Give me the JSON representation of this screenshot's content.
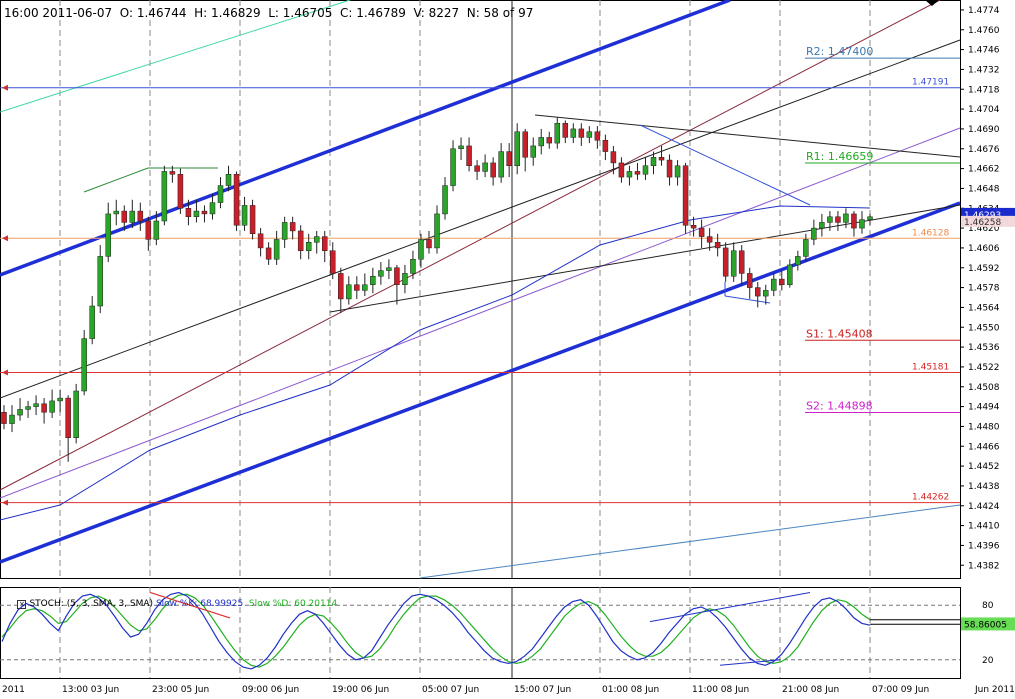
{
  "header": {
    "text": "16:00 2011-06-07  O: 1.46744  H: 1.46829  L: 1.46705  C: 1.46789  V: 8227  N: 58 of 97"
  },
  "colors": {
    "up_candle": "#2aa52a",
    "down_candle": "#c8202a",
    "channel": "#1f2fd6",
    "grid": "#555555"
  },
  "chart_data": [
    {
      "type": "candlestick",
      "y_axis_ticks": [
        1.4774,
        1.476,
        1.4746,
        1.4732,
        1.4718,
        1.4704,
        1.469,
        1.4676,
        1.4662,
        1.4648,
        1.4634,
        1.462,
        1.4606,
        1.4592,
        1.4578,
        1.4564,
        1.455,
        1.4536,
        1.4522,
        1.4508,
        1.4494,
        1.448,
        1.4466,
        1.4452,
        1.4438,
        1.4424,
        1.441,
        1.4396,
        1.4382
      ],
      "ylim": [
        1.4373,
        1.4781
      ],
      "x_tick_labels": [
        "2011",
        "13:00 03 Jun",
        "23:00 05 Jun",
        "09:00 06 Jun",
        "19:00 06 Jun",
        "05:00 07 Jun",
        "15:00 07 Jun",
        "01:00 08 Jun",
        "11:00 08 Jun",
        "21:00 08 Jun",
        "07:00 09 Jun",
        "Jun 2011"
      ],
      "price_labels": [
        {
          "text": "R2: 1.47400",
          "value": 1.474,
          "color": "#3a78b0"
        },
        {
          "text": "1.47191",
          "value": 1.47191,
          "color": "#3a52d6"
        },
        {
          "text": "R1: 1.46659",
          "value": 1.46659,
          "color": "#22aa22"
        },
        {
          "text": "1.46128",
          "value": 1.46128,
          "color": "#f08a4a"
        },
        {
          "text": "S1: 1.45408",
          "value": 1.45408,
          "color": "#cc2222"
        },
        {
          "text": "1.45181",
          "value": 1.45181,
          "color": "#dd2222"
        },
        {
          "text": "S2: 1.44898",
          "value": 1.44898,
          "color": "#cc22cc"
        },
        {
          "text": "1.44262",
          "value": 1.44262,
          "color": "#dd2222"
        }
      ],
      "current_price_label": "1.46293",
      "second_price_label": "1.46258",
      "candles": [
        [
          1.449,
          1.4482,
          1.4495,
          1.4478
        ],
        [
          1.4482,
          1.4488,
          1.4495,
          1.4476
        ],
        [
          1.4488,
          1.4492,
          1.45,
          1.4484
        ],
        [
          1.4492,
          1.4494,
          1.4498,
          1.4486
        ],
        [
          1.4494,
          1.4496,
          1.4502,
          1.4488
        ],
        [
          1.4496,
          1.449,
          1.45,
          1.4482
        ],
        [
          1.449,
          1.4498,
          1.4506,
          1.4486
        ],
        [
          1.4498,
          1.45,
          1.4506,
          1.449
        ],
        [
          1.45,
          1.4472,
          1.4502,
          1.4455
        ],
        [
          1.4472,
          1.4505,
          1.451,
          1.4468
        ],
        [
          1.4505,
          1.4542,
          1.4548,
          1.4502
        ],
        [
          1.4542,
          1.4565,
          1.4572,
          1.4538
        ],
        [
          1.4565,
          1.46,
          1.4608,
          1.456
        ],
        [
          1.46,
          1.463,
          1.4638,
          1.4596
        ],
        [
          1.463,
          1.4632,
          1.464,
          1.4622
        ],
        [
          1.4632,
          1.4624,
          1.4636,
          1.4618
        ],
        [
          1.4624,
          1.4632,
          1.464,
          1.462
        ],
        [
          1.4632,
          1.4625,
          1.4638,
          1.4618
        ],
        [
          1.4625,
          1.4612,
          1.4628,
          1.4604
        ],
        [
          1.4612,
          1.4625,
          1.4632,
          1.4608
        ],
        [
          1.4625,
          1.466,
          1.4664,
          1.4622
        ],
        [
          1.466,
          1.4658,
          1.4664,
          1.4652
        ],
        [
          1.4658,
          1.4634,
          1.4662,
          1.463
        ],
        [
          1.4634,
          1.4628,
          1.464,
          1.4622
        ],
        [
          1.4628,
          1.4632,
          1.464,
          1.4624
        ],
        [
          1.4632,
          1.463,
          1.4636,
          1.4624
        ],
        [
          1.463,
          1.4638,
          1.4644,
          1.4626
        ],
        [
          1.4638,
          1.465,
          1.4656,
          1.4634
        ],
        [
          1.465,
          1.4658,
          1.4664,
          1.4646
        ],
        [
          1.4658,
          1.4622,
          1.466,
          1.4618
        ],
        [
          1.4622,
          1.4636,
          1.4642,
          1.4618
        ],
        [
          1.4636,
          1.4616,
          1.464,
          1.4612
        ],
        [
          1.4616,
          1.4606,
          1.462,
          1.46
        ],
        [
          1.4606,
          1.4598,
          1.461,
          1.4594
        ],
        [
          1.4598,
          1.4612,
          1.4618,
          1.4594
        ],
        [
          1.4612,
          1.4624,
          1.4628,
          1.4606
        ],
        [
          1.4624,
          1.4618,
          1.4628,
          1.4612
        ],
        [
          1.4618,
          1.4604,
          1.4622,
          1.4598
        ],
        [
          1.4604,
          1.461,
          1.4616,
          1.4598
        ],
        [
          1.461,
          1.4614,
          1.4618,
          1.4602
        ],
        [
          1.4614,
          1.4604,
          1.4618,
          1.4596
        ],
        [
          1.4604,
          1.4588,
          1.461,
          1.4584
        ],
        [
          1.4588,
          1.457,
          1.4592,
          1.456
        ],
        [
          1.457,
          1.458,
          1.4586,
          1.4566
        ],
        [
          1.458,
          1.4576,
          1.4586,
          1.457
        ],
        [
          1.4576,
          1.458,
          1.4588,
          1.4572
        ],
        [
          1.458,
          1.4586,
          1.4592,
          1.4574
        ],
        [
          1.4586,
          1.459,
          1.4596,
          1.458
        ],
        [
          1.459,
          1.4592,
          1.4598,
          1.4584
        ],
        [
          1.4592,
          1.458,
          1.4594,
          1.4566
        ],
        [
          1.458,
          1.4588,
          1.4594,
          1.4574
        ],
        [
          1.4588,
          1.4598,
          1.4604,
          1.4584
        ],
        [
          1.4598,
          1.4612,
          1.4616,
          1.4592
        ],
        [
          1.4612,
          1.4606,
          1.4618,
          1.4602
        ],
        [
          1.4606,
          1.463,
          1.4636,
          1.4602
        ],
        [
          1.463,
          1.465,
          1.4656,
          1.4626
        ],
        [
          1.465,
          1.4676,
          1.4682,
          1.4646
        ],
        [
          1.4676,
          1.4678,
          1.4684,
          1.4668
        ],
        [
          1.4678,
          1.4664,
          1.4684,
          1.466
        ],
        [
          1.4664,
          1.466,
          1.4668,
          1.4654
        ],
        [
          1.466,
          1.4666,
          1.4672,
          1.4656
        ],
        [
          1.4666,
          1.4656,
          1.467,
          1.465
        ],
        [
          1.4656,
          1.4674,
          1.468,
          1.4652
        ],
        [
          1.4674,
          1.4664,
          1.468,
          1.4656
        ],
        [
          1.4664,
          1.4688,
          1.4694,
          1.4658
        ],
        [
          1.4688,
          1.467,
          1.469,
          1.466
        ],
        [
          1.467,
          1.4678,
          1.4684,
          1.4664
        ],
        [
          1.4678,
          1.4684,
          1.469,
          1.4672
        ],
        [
          1.4684,
          1.468,
          1.4688,
          1.4676
        ],
        [
          1.468,
          1.4694,
          1.4698,
          1.4676
        ],
        [
          1.4694,
          1.4684,
          1.4696,
          1.468
        ],
        [
          1.4684,
          1.469,
          1.4694,
          1.468
        ],
        [
          1.469,
          1.4684,
          1.4694,
          1.4678
        ],
        [
          1.4684,
          1.4688,
          1.4692,
          1.468
        ],
        [
          1.4688,
          1.4682,
          1.4692,
          1.4676
        ],
        [
          1.4682,
          1.4674,
          1.4686,
          1.4668
        ],
        [
          1.4674,
          1.4666,
          1.4678,
          1.4658
        ],
        [
          1.4666,
          1.4656,
          1.467,
          1.4652
        ],
        [
          1.4656,
          1.466,
          1.4664,
          1.465
        ],
        [
          1.466,
          1.4658,
          1.4666,
          1.4654
        ],
        [
          1.4658,
          1.4664,
          1.467,
          1.4654
        ],
        [
          1.4664,
          1.467,
          1.4674,
          1.4658
        ],
        [
          1.467,
          1.4668,
          1.4678,
          1.4664
        ],
        [
          1.4668,
          1.4656,
          1.4672,
          1.465
        ],
        [
          1.4656,
          1.4664,
          1.4668,
          1.465
        ],
        [
          1.4664,
          1.4622,
          1.4666,
          1.4616
        ],
        [
          1.4622,
          1.462,
          1.4628,
          1.4614
        ],
        [
          1.462,
          1.4614,
          1.4626,
          1.4606
        ],
        [
          1.4614,
          1.461,
          1.462,
          1.4604
        ],
        [
          1.461,
          1.4606,
          1.4616,
          1.46
        ],
        [
          1.4606,
          1.4586,
          1.461,
          1.4582
        ],
        [
          1.4586,
          1.4604,
          1.461,
          1.4582
        ],
        [
          1.4604,
          1.4588,
          1.4608,
          1.458
        ],
        [
          1.4588,
          1.4578,
          1.4592,
          1.457
        ],
        [
          1.4578,
          1.4572,
          1.4582,
          1.4564
        ],
        [
          1.4572,
          1.4576,
          1.458,
          1.4566
        ],
        [
          1.4576,
          1.4584,
          1.4588,
          1.4572
        ],
        [
          1.4584,
          1.458,
          1.459,
          1.4576
        ],
        [
          1.458,
          1.4594,
          1.4598,
          1.4578
        ],
        [
          1.4594,
          1.46,
          1.4604,
          1.459
        ],
        [
          1.46,
          1.4612,
          1.4616,
          1.4596
        ],
        [
          1.4612,
          1.462,
          1.4626,
          1.4608
        ],
        [
          1.462,
          1.4624,
          1.463,
          1.4614
        ],
        [
          1.4624,
          1.4628,
          1.4632,
          1.4618
        ],
        [
          1.4628,
          1.4624,
          1.4632,
          1.4618
        ],
        [
          1.4624,
          1.463,
          1.4634,
          1.462
        ],
        [
          1.463,
          1.462,
          1.4632,
          1.4614
        ],
        [
          1.462,
          1.4626,
          1.4632,
          1.4616
        ],
        [
          1.4626,
          1.4628,
          1.463,
          1.4622
        ]
      ]
    },
    {
      "type": "line",
      "name": "STOCH",
      "header_prefix": "STOCH: (5, 3, SMA, 3, SMA)",
      "k_label": "Slow %K: 68.99925",
      "d_label": "Slow %D: 60.20114",
      "k_color": "#2030c8",
      "d_color": "#20b020",
      "y_ticks": [
        80,
        20
      ],
      "ylim": [
        0,
        100
      ],
      "current_value_label": "58.86005",
      "k": [
        40,
        60,
        75,
        82,
        78,
        70,
        60,
        52,
        68,
        82,
        90,
        92,
        88,
        80,
        68,
        55,
        45,
        48,
        60,
        75,
        86,
        92,
        94,
        90,
        82,
        70,
        55,
        40,
        28,
        18,
        12,
        10,
        14,
        22,
        34,
        48,
        60,
        70,
        74,
        70,
        60,
        48,
        36,
        26,
        20,
        22,
        30,
        44,
        58,
        70,
        82,
        90,
        92,
        90,
        86,
        80,
        72,
        62,
        50,
        40,
        30,
        22,
        18,
        16,
        18,
        24,
        32,
        44,
        56,
        68,
        78,
        84,
        86,
        80,
        68,
        54,
        40,
        30,
        24,
        20,
        22,
        28,
        38,
        50,
        60,
        70,
        76,
        78,
        74,
        66,
        56,
        44,
        32,
        22,
        16,
        14,
        18,
        26,
        38,
        52,
        66,
        78,
        86,
        88,
        84,
        76,
        66,
        60,
        58
      ],
      "d": [
        45,
        55,
        66,
        74,
        76,
        74,
        68,
        60,
        62,
        72,
        82,
        88,
        90,
        86,
        78,
        68,
        58,
        52,
        54,
        64,
        76,
        86,
        91,
        92,
        88,
        80,
        68,
        55,
        42,
        30,
        20,
        14,
        12,
        16,
        24,
        34,
        46,
        58,
        66,
        70,
        68,
        60,
        50,
        38,
        28,
        22,
        24,
        32,
        44,
        58,
        70,
        80,
        88,
        90,
        90,
        86,
        80,
        72,
        62,
        52,
        42,
        32,
        24,
        18,
        16,
        18,
        24,
        32,
        44,
        56,
        68,
        76,
        82,
        84,
        80,
        70,
        58,
        46,
        36,
        28,
        24,
        24,
        28,
        36,
        46,
        56,
        66,
        72,
        76,
        74,
        68,
        58,
        46,
        34,
        24,
        18,
        16,
        18,
        24,
        34,
        48,
        62,
        74,
        82,
        86,
        84,
        78,
        70,
        64
      ]
    }
  ]
}
